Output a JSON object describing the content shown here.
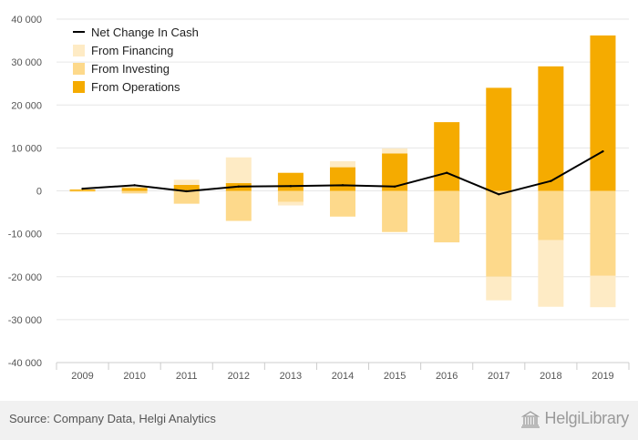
{
  "chart_data": {
    "type": "bar",
    "categories": [
      "2009",
      "2010",
      "2011",
      "2012",
      "2013",
      "2014",
      "2015",
      "2016",
      "2017",
      "2018",
      "2019"
    ],
    "series": [
      {
        "name": "From Operations",
        "kind": "bar",
        "color": "#f5ab00",
        "values": [
          300,
          700,
          1400,
          1800,
          4200,
          5500,
          8700,
          16000,
          24000,
          29000,
          36200
        ]
      },
      {
        "name": "From Investing",
        "kind": "bar",
        "color": "#fdd98b",
        "values": [
          -200,
          -600,
          -3000,
          -7000,
          -2600,
          -6000,
          -9600,
          -12000,
          -20000,
          -11500,
          -19800
        ]
      },
      {
        "name": "From Financing",
        "kind": "bar",
        "color": "#feebc5",
        "values": [
          0,
          300,
          1200,
          6000,
          -800,
          1400,
          1200,
          0,
          -5500,
          -15500,
          -7300
        ]
      },
      {
        "name": "Net Change In Cash",
        "kind": "line",
        "color": "#000000",
        "values": [
          500,
          1300,
          -100,
          1000,
          1100,
          1300,
          1000,
          4200,
          -800,
          2300,
          9200
        ]
      }
    ],
    "legend_order": [
      "Net Change In Cash",
      "From Financing",
      "From Investing",
      "From Operations"
    ],
    "legend_position": "top-left",
    "ylim": [
      -40000,
      40000
    ],
    "yticks": [
      40000,
      30000,
      20000,
      10000,
      0,
      -10000,
      -20000,
      -30000,
      -40000
    ],
    "ytick_labels": [
      "40 000",
      "30 000",
      "20 000",
      "10 000",
      "0",
      "-10 000",
      "-20 000",
      "-30 000",
      "-40 000"
    ],
    "grid": true
  },
  "footer": {
    "source": "Source: Company Data, Helgi Analytics",
    "brand": "HelgiLibrary"
  }
}
